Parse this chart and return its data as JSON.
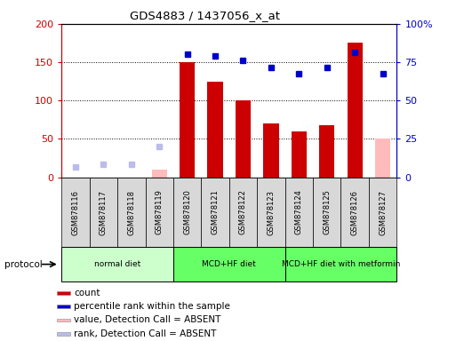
{
  "title": "GDS4883 / 1437056_x_at",
  "samples": [
    "GSM878116",
    "GSM878117",
    "GSM878118",
    "GSM878119",
    "GSM878120",
    "GSM878121",
    "GSM878122",
    "GSM878123",
    "GSM878124",
    "GSM878125",
    "GSM878126",
    "GSM878127"
  ],
  "bar_values": [
    0,
    0,
    0,
    0,
    150,
    125,
    100,
    70,
    60,
    68,
    175,
    0
  ],
  "bar_absent": [
    false,
    false,
    false,
    true,
    false,
    false,
    false,
    false,
    false,
    false,
    false,
    true
  ],
  "bar_absent_values": [
    0,
    0,
    0,
    10,
    0,
    0,
    0,
    0,
    0,
    0,
    0,
    50
  ],
  "percentile_values": [
    null,
    null,
    null,
    null,
    80,
    79,
    76,
    71.5,
    67.5,
    71.5,
    81.5,
    67.5
  ],
  "percentile_absent": [
    13,
    17,
    17,
    40,
    null,
    null,
    null,
    null,
    null,
    null,
    null,
    null
  ],
  "ylim_left": [
    0,
    200
  ],
  "ylim_right": [
    0,
    100
  ],
  "yticks_left": [
    0,
    50,
    100,
    150,
    200
  ],
  "yticks_left_labels": [
    "0",
    "50",
    "100",
    "150",
    "200"
  ],
  "yticks_right": [
    0,
    25,
    50,
    75,
    100
  ],
  "yticks_right_labels": [
    "0",
    "25",
    "50",
    "75",
    "100%"
  ],
  "protocols": [
    {
      "label": "normal diet",
      "start": 0,
      "end": 3,
      "color": "#ccffcc"
    },
    {
      "label": "MCD+HF diet",
      "start": 4,
      "end": 7,
      "color": "#66ff66"
    },
    {
      "label": "MCD+HF diet with metformin",
      "start": 8,
      "end": 11,
      "color": "#66ff66"
    }
  ],
  "bg_color": "#d8d8d8",
  "legend_items": [
    {
      "color": "#cc0000",
      "label": "count"
    },
    {
      "color": "#0000cc",
      "label": "percentile rank within the sample"
    },
    {
      "color": "#ffbbbb",
      "label": "value, Detection Call = ABSENT"
    },
    {
      "color": "#bbbbee",
      "label": "rank, Detection Call = ABSENT"
    }
  ]
}
